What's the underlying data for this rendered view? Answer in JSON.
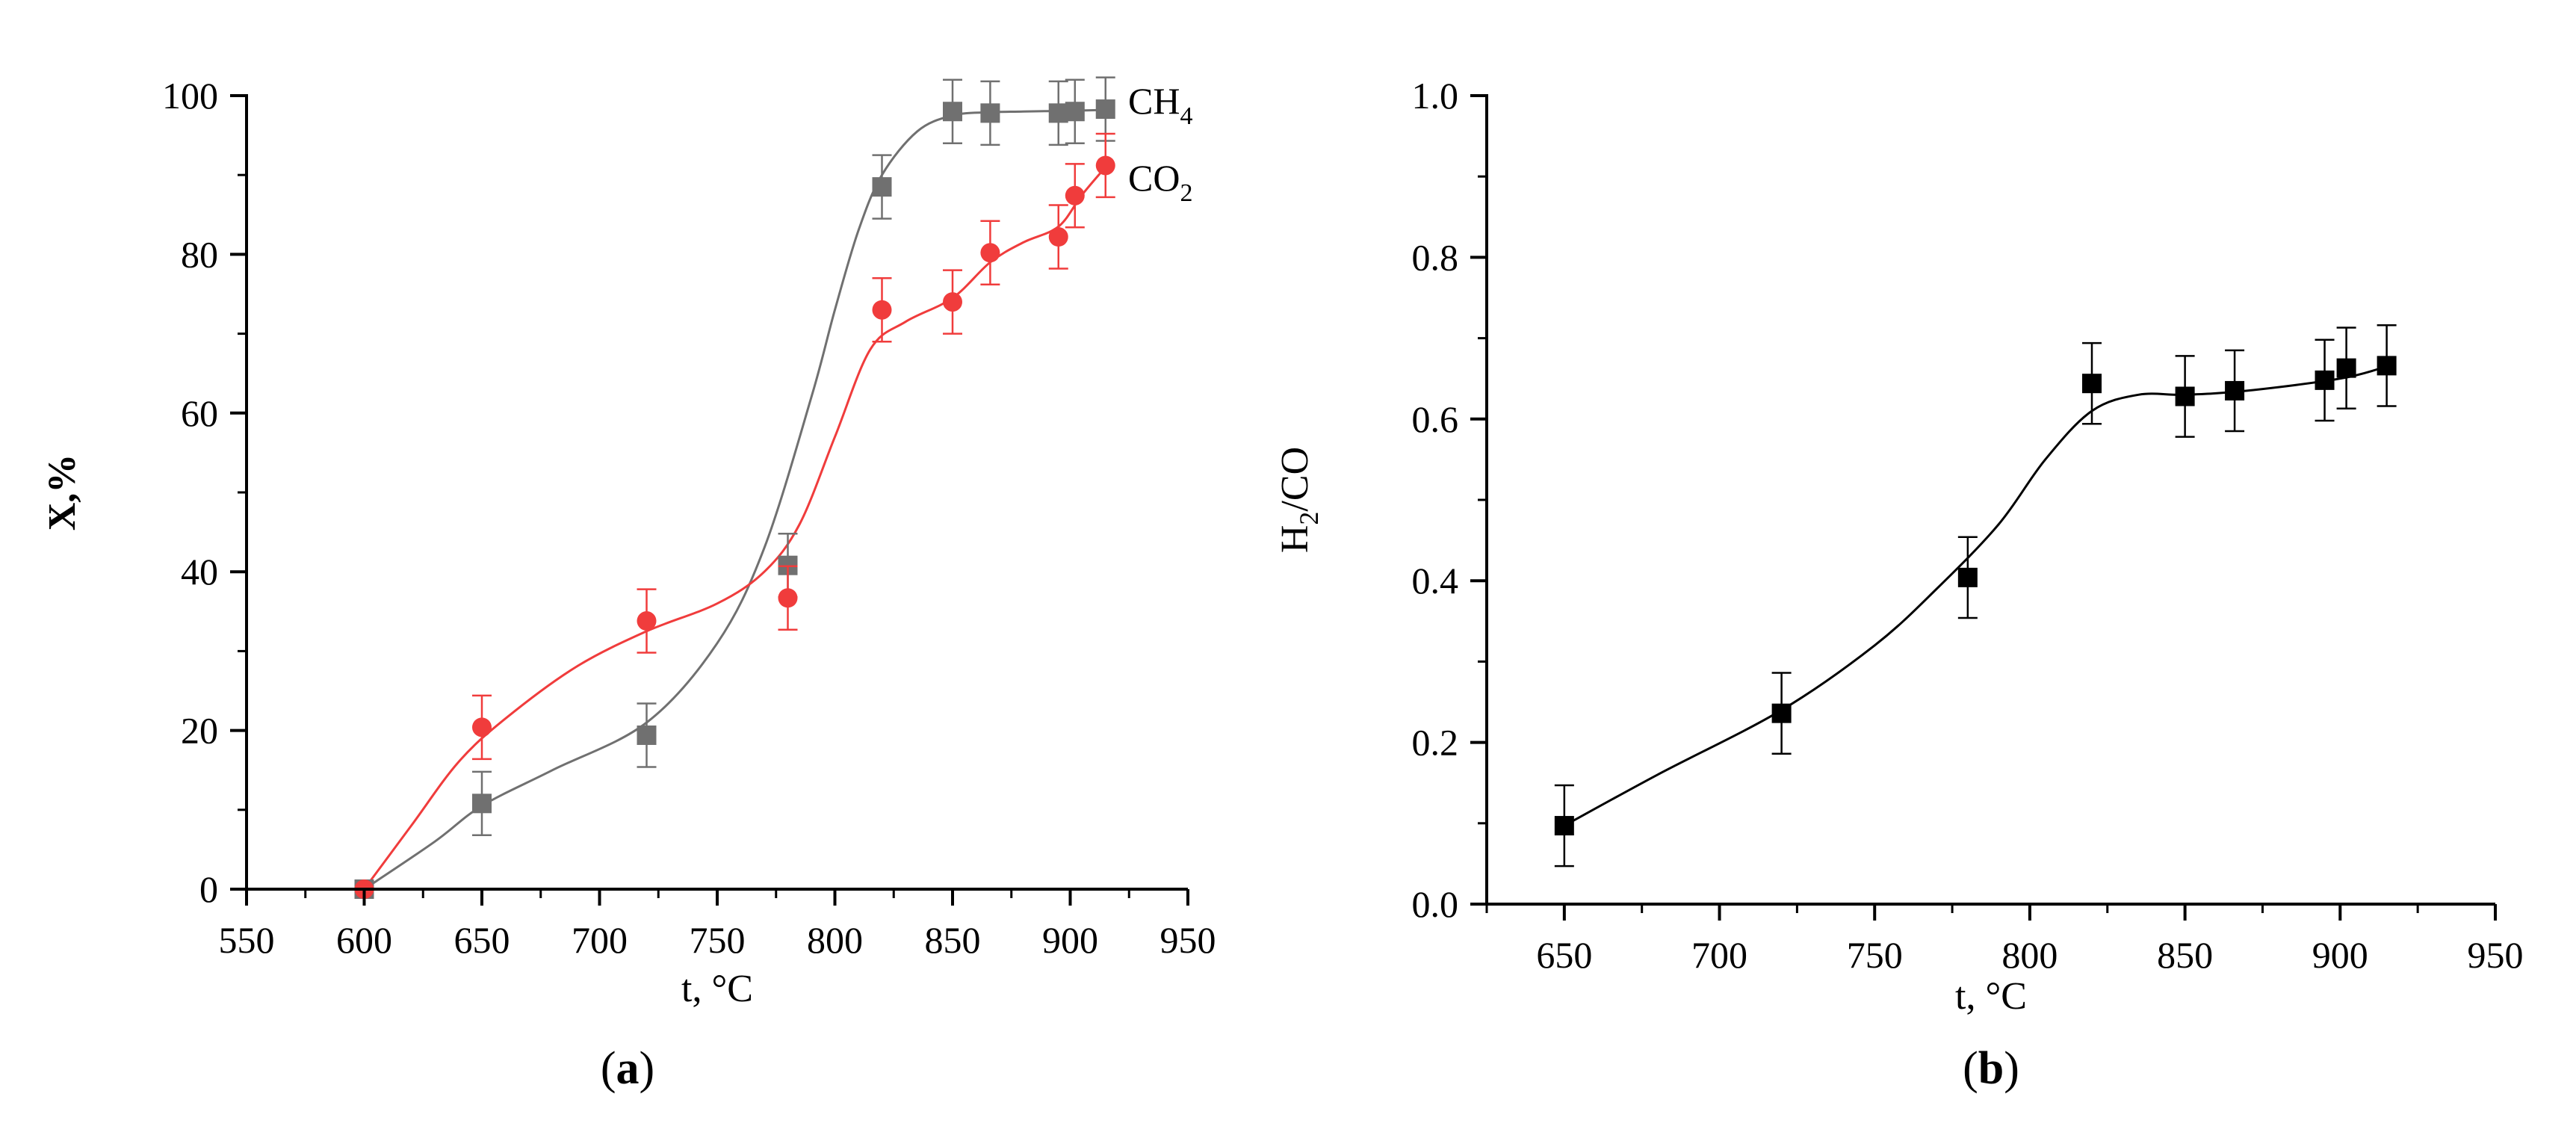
{
  "chart_data": [
    {
      "id": "a",
      "type": "scatter",
      "panel_label": "a",
      "xlabel": "t, °C",
      "ylabel": "X,%",
      "xlim": [
        550,
        950
      ],
      "ylim": [
        0,
        100
      ],
      "xticks": [
        550,
        600,
        650,
        700,
        750,
        800,
        850,
        900,
        950
      ],
      "yticks": [
        0,
        20,
        40,
        60,
        80,
        100
      ],
      "series": [
        {
          "name": "CH",
          "name_sub": "4",
          "color": "#707070",
          "marker": "square",
          "x": [
            600,
            650,
            720,
            780,
            820,
            850,
            866,
            895,
            902,
            915
          ],
          "y": [
            0,
            10.8,
            19.4,
            40.8,
            88.5,
            98,
            97.8,
            97.8,
            98,
            98.3
          ],
          "err": [
            0,
            4,
            4,
            4,
            4,
            4,
            4,
            4,
            4,
            4
          ],
          "fit": {
            "x": [
              600,
              630,
              650,
              680,
              720,
              750,
              770,
              790,
              800,
              810,
              820,
              835,
              850,
              865,
              880,
              900,
              915
            ],
            "y": [
              0,
              6,
              10.5,
              15,
              21,
              31,
              43,
              62,
              73,
              83,
              90,
              95.5,
              97.5,
              97.9,
              98,
              98.1,
              98.2
            ]
          }
        },
        {
          "name": "CO",
          "name_sub": "2",
          "color": "#f03c3c",
          "marker": "circle",
          "x": [
            600,
            650,
            720,
            780,
            820,
            850,
            866,
            895,
            902,
            915
          ],
          "y": [
            0,
            20.4,
            33.8,
            36.7,
            73,
            74,
            80.2,
            82.2,
            87.4,
            91.2
          ],
          "err": [
            0,
            4,
            4,
            4,
            4,
            4,
            4,
            4,
            4,
            4
          ],
          "fit": {
            "x": [
              600,
              620,
              640,
              660,
              690,
              720,
              750,
              770,
              785,
              800,
              815,
              830,
              850,
              866,
              880,
              895,
              905,
              915
            ],
            "y": [
              0,
              8,
              16,
              21.5,
              28,
              32.5,
              36,
              40,
              46,
              57,
              68,
              71.5,
              74.5,
              79,
              81.5,
              83.5,
              87.5,
              91
            ]
          }
        }
      ]
    },
    {
      "id": "b",
      "type": "scatter",
      "panel_label": "b",
      "xlabel": "t, °C",
      "ylabel": "H",
      "ylabel_sub": "2",
      "ylabel_tail": "/CO",
      "xlim": [
        625,
        950
      ],
      "ylim": [
        0,
        1.0
      ],
      "xticks": [
        650,
        700,
        750,
        800,
        850,
        900,
        950
      ],
      "yticks": [
        "0.0",
        "0.2",
        "0.4",
        "0.6",
        "0.8",
        "1.0"
      ],
      "series": [
        {
          "name": "H2/CO",
          "color": "#000000",
          "marker": "square",
          "x": [
            650,
            720,
            780,
            820,
            850,
            866,
            895,
            902,
            915
          ],
          "y": [
            0.097,
            0.236,
            0.404,
            0.644,
            0.628,
            0.635,
            0.648,
            0.663,
            0.666
          ],
          "err": [
            0.05,
            0.05,
            0.05,
            0.05,
            0.05,
            0.05,
            0.05,
            0.05,
            0.05
          ],
          "fit": {
            "x": [
              650,
              680,
              720,
              750,
              770,
              790,
              805,
              820,
              835,
              850,
              870,
              900,
              915
            ],
            "y": [
              0.097,
              0.16,
              0.24,
              0.32,
              0.39,
              0.47,
              0.55,
              0.61,
              0.63,
              0.63,
              0.635,
              0.65,
              0.665
            ]
          }
        }
      ]
    }
  ]
}
